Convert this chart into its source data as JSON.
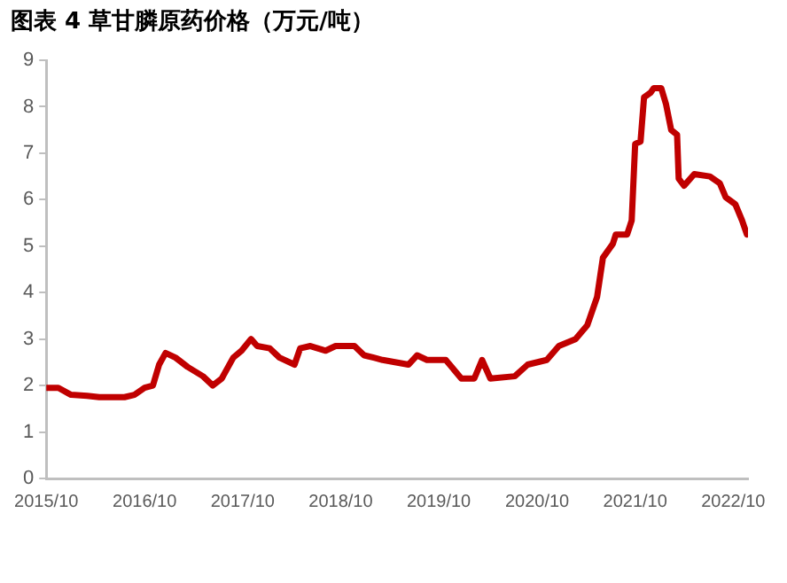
{
  "chart_data": {
    "type": "line",
    "title": "图表 4 草甘膦原药价格（万元/吨）",
    "x": [
      "2015-10-01",
      "2015-11-15",
      "2016-01-01",
      "2016-03-01",
      "2016-04-15",
      "2016-07-18",
      "2016-08-24",
      "2016-10-01",
      "2016-11-01",
      "2016-11-24",
      "2016-12-18",
      "2017-01-24",
      "2017-03-10",
      "2017-05-06",
      "2017-06-12",
      "2017-07-15",
      "2017-08-27",
      "2017-09-27",
      "2017-11-01",
      "2017-11-24",
      "2018-01-10",
      "2018-02-15",
      "2018-04-12",
      "2018-05-03",
      "2018-06-10",
      "2018-08-06",
      "2018-09-12",
      "2018-11-21",
      "2018-12-27",
      "2019-02-01",
      "2019-03-06",
      "2019-06-10",
      "2019-07-12",
      "2019-08-18",
      "2019-10-27",
      "2019-12-24",
      "2020-02-10",
      "2020-03-10",
      "2020-04-10",
      "2020-07-10",
      "2020-08-27",
      "2020-11-06",
      "2020-12-21",
      "2021-02-21",
      "2021-04-06",
      "2021-05-12",
      "2021-06-03",
      "2021-07-10",
      "2021-07-21",
      "2021-09-01",
      "2021-09-18",
      "2021-10-01",
      "2021-10-21",
      "2021-11-03",
      "2021-11-27",
      "2021-12-09",
      "2022-01-06",
      "2022-01-24",
      "2022-02-12",
      "2022-03-06",
      "2022-03-12",
      "2022-04-01",
      "2022-05-09",
      "2022-07-06",
      "2022-08-12",
      "2022-09-03",
      "2022-10-09",
      "2022-11-03",
      "2022-11-21"
    ],
    "series": [
      {
        "color": "#c00000",
        "values": [
          1.95,
          1.95,
          1.8,
          1.78,
          1.75,
          1.75,
          1.8,
          1.95,
          2.0,
          2.45,
          2.7,
          2.6,
          2.4,
          2.2,
          2.0,
          2.15,
          2.6,
          2.75,
          3.0,
          2.85,
          2.8,
          2.6,
          2.45,
          2.8,
          2.85,
          2.75,
          2.85,
          2.85,
          2.65,
          2.6,
          2.55,
          2.45,
          2.65,
          2.55,
          2.55,
          2.15,
          2.15,
          2.55,
          2.15,
          2.2,
          2.45,
          2.55,
          2.85,
          3.0,
          3.3,
          3.9,
          4.75,
          5.05,
          5.25,
          5.25,
          5.55,
          7.2,
          7.25,
          8.2,
          8.3,
          8.4,
          8.4,
          8.05,
          7.5,
          7.4,
          6.45,
          6.3,
          6.55,
          6.5,
          6.35,
          6.05,
          5.9,
          5.55,
          5.25
        ]
      }
    ],
    "xlim": [
      "2015-10-01",
      "2022-11-25"
    ],
    "xticks": [
      {
        "value": "2015-10-01",
        "label": "2015/10"
      },
      {
        "value": "2016-10-01",
        "label": "2016/10"
      },
      {
        "value": "2017-10-01",
        "label": "2017/10"
      },
      {
        "value": "2018-10-01",
        "label": "2018/10"
      },
      {
        "value": "2019-10-01",
        "label": "2019/10"
      },
      {
        "value": "2020-10-01",
        "label": "2020/10"
      },
      {
        "value": "2021-10-01",
        "label": "2021/10"
      },
      {
        "value": "2022-10-01",
        "label": "2022/10"
      }
    ],
    "ylim": [
      0,
      9
    ],
    "yticks": [
      0,
      1,
      2,
      3,
      4,
      5,
      6,
      7,
      8,
      9
    ],
    "grid": false,
    "legend": false,
    "marker": "none",
    "line_style": "solid"
  }
}
